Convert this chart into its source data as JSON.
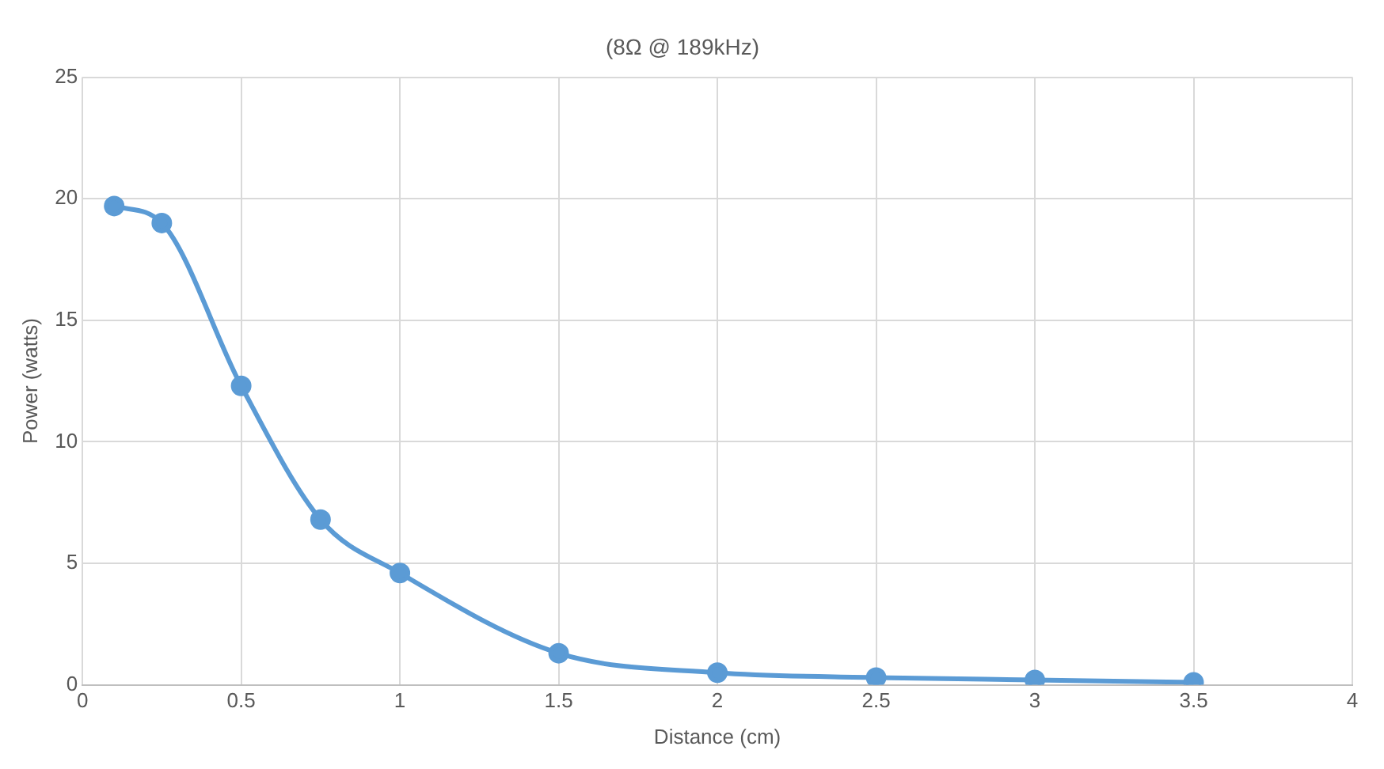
{
  "chart_data": {
    "type": "line",
    "title": "(8Ω @ 189kHz)",
    "xlabel": "Distance (cm)",
    "ylabel": "Power (watts)",
    "x": [
      0.1,
      0.25,
      0.5,
      0.75,
      1,
      1.5,
      2,
      2.5,
      3,
      3.5
    ],
    "series": [
      {
        "color": "#5b9bd5",
        "values": [
          19.7,
          19,
          12.3,
          6.8,
          4.6,
          1.3,
          0.5,
          0.3,
          0.2,
          0.1
        ]
      }
    ],
    "xlim": [
      0,
      4
    ],
    "xticks": [
      0,
      0.5,
      1,
      1.5,
      2,
      2.5,
      3,
      3.5,
      4
    ],
    "ylim": [
      0,
      25
    ],
    "yticks": [
      0,
      5,
      10,
      15,
      20,
      25
    ],
    "grid": true,
    "legend": false,
    "marker": "circle",
    "line_style": "solid"
  }
}
